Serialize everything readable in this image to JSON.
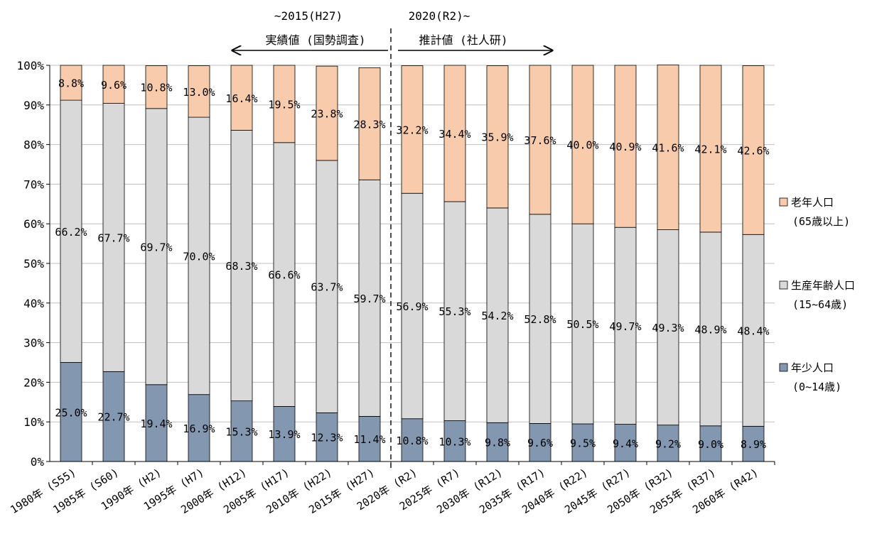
{
  "chart_data": {
    "type": "bar",
    "stacked": true,
    "percent_stacked": true,
    "categories": [
      "1980年 (S55)",
      "1985年 (S60)",
      "1990年 (H2)",
      "1995年 (H7)",
      "2000年 (H12)",
      "2005年 (H17)",
      "2010年 (H22)",
      "2015年 (H27)",
      "2020年 (R2)",
      "2025年 (R7)",
      "2030年 (R12)",
      "2035年 (R17)",
      "2040年 (R22)",
      "2045年 (R27)",
      "2050年 (R32)",
      "2055年 (R37)",
      "2060年 (R42)"
    ],
    "series": [
      {
        "name": "年少人口",
        "name_sub": "(0~14歳)",
        "color": "#8497b0",
        "values": [
          25.0,
          22.7,
          19.4,
          16.9,
          15.3,
          13.9,
          12.3,
          11.4,
          10.8,
          10.3,
          9.8,
          9.6,
          9.5,
          9.4,
          9.2,
          9.0,
          8.9
        ],
        "labels": [
          "25.0%",
          "22.7%",
          "19.4%",
          "16.9%",
          "15.3%",
          "13.9%",
          "12.3%",
          "11.4%",
          "10.8%",
          "10.3%",
          "9.8%",
          "9.6%",
          "9.5%",
          "9.4%",
          "9.2%",
          "9.0%",
          "8.9%"
        ]
      },
      {
        "name": "生産年齢人口",
        "name_sub": "(15~64歳)",
        "color": "#d9d9d9",
        "values": [
          66.2,
          67.7,
          69.7,
          70.0,
          68.3,
          66.6,
          63.7,
          59.7,
          56.9,
          55.3,
          54.2,
          52.8,
          50.5,
          49.7,
          49.3,
          48.9,
          48.4
        ],
        "labels": [
          "66.2%",
          "67.7%",
          "69.7%",
          "70.0%",
          "68.3%",
          "66.6%",
          "63.7%",
          "59.7%",
          "56.9%",
          "55.3%",
          "54.2%",
          "52.8%",
          "50.5%",
          "49.7%",
          "49.3%",
          "48.9%",
          "48.4%"
        ]
      },
      {
        "name": "老年人口",
        "name_sub": "(65歳以上)",
        "color": "#f8cbad",
        "values": [
          8.8,
          9.6,
          10.8,
          13.0,
          16.4,
          19.5,
          23.8,
          28.3,
          32.2,
          34.4,
          35.9,
          37.6,
          40.0,
          40.9,
          41.6,
          42.1,
          42.6
        ],
        "labels": [
          "8.8%",
          "9.6%",
          "10.8%",
          "13.0%",
          "16.4%",
          "19.5%",
          "23.8%",
          "28.3%",
          "32.2%",
          "34.4%",
          "35.9%",
          "37.6%",
          "40.0%",
          "40.9%",
          "41.6%",
          "42.1%",
          "42.6%"
        ]
      }
    ],
    "y_ticks": [
      "0%",
      "10%",
      "20%",
      "30%",
      "40%",
      "50%",
      "60%",
      "70%",
      "80%",
      "90%",
      "100%"
    ],
    "ylim": [
      0,
      100
    ],
    "grid": true,
    "legend_position": "right",
    "divider_after_category": "2015年 (H27)",
    "annotations": {
      "left_line1": "~2015(H27)",
      "left_line2": "実績値 (国勢調査)",
      "right_line1": "2020(R2)~",
      "right_line2": "推計値 (社人研)"
    },
    "colors": {
      "grid": "#bfbfbf",
      "bar_border": "#000000",
      "divider": "#000000"
    }
  }
}
